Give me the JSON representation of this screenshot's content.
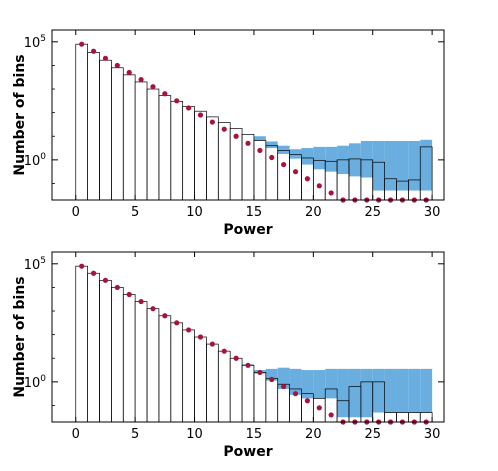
{
  "chart_data": [
    {
      "type": "bar",
      "xlabel": "Power",
      "ylabel": "Number of bins",
      "xlim": [
        -2,
        31
      ],
      "ylim_log10": [
        -1.7,
        5.5
      ],
      "y_scale": "log",
      "xticks": [
        0,
        5,
        10,
        15,
        20,
        25,
        30
      ],
      "xtick_labels": [
        "0",
        "5",
        "10",
        "15",
        "20",
        "25",
        "30"
      ],
      "yticks_log10": [
        5,
        0
      ],
      "ytick_base": "10",
      "ytick_exponents": [
        "5",
        "0"
      ],
      "bin_width": 1,
      "histogram_log10": [
        4.9,
        4.55,
        4.22,
        3.9,
        3.6,
        3.3,
        3.0,
        2.72,
        2.48,
        2.26,
        2.06,
        1.82,
        1.58,
        1.33,
        1.08,
        0.82,
        0.6,
        0.4,
        0.22,
        0.08,
        -0.02,
        -0.06,
        0.0,
        0.04,
        0.0,
        -0.1,
        -0.8,
        -0.9,
        -0.85,
        0.55
      ],
      "band_low_log10": [
        4.9,
        4.55,
        4.22,
        3.9,
        3.6,
        3.3,
        3.0,
        2.72,
        2.48,
        2.26,
        2.06,
        1.82,
        1.58,
        1.33,
        1.08,
        0.82,
        0.5,
        0.25,
        0.05,
        -0.2,
        -0.4,
        -0.5,
        -0.6,
        -0.7,
        -0.75,
        -1.3,
        -1.3,
        -1.3,
        -1.3,
        -1.3
      ],
      "band_high_log10": [
        4.9,
        4.55,
        4.22,
        3.9,
        3.6,
        3.3,
        3.0,
        2.72,
        2.48,
        2.26,
        2.06,
        1.82,
        1.58,
        1.33,
        1.08,
        1.0,
        0.78,
        0.6,
        0.45,
        0.5,
        0.55,
        0.55,
        0.6,
        0.7,
        0.8,
        0.8,
        0.8,
        0.8,
        0.8,
        0.85
      ],
      "points_x": [
        0.5,
        1.5,
        2.5,
        3.5,
        4.5,
        5.5,
        6.5,
        7.5,
        8.5,
        9.5,
        10.5,
        11.5,
        12.5,
        13.5,
        14.5,
        15.5,
        16.5,
        17.5,
        18.5,
        19.5,
        20.5,
        21.5,
        22.5,
        23.5,
        24.5,
        25.5,
        26.5,
        27.5,
        28.5,
        29.5
      ],
      "points_log10": [
        4.9,
        4.6,
        4.3,
        4.0,
        3.7,
        3.4,
        3.1,
        2.8,
        2.5,
        2.2,
        1.9,
        1.6,
        1.3,
        1.0,
        0.7,
        0.4,
        0.1,
        -0.2,
        -0.5,
        -0.8,
        -1.1,
        -1.4,
        -1.7,
        -2.0,
        -2.3,
        -2.6,
        -2.9,
        -3.2,
        -3.5,
        -3.8
      ],
      "colors": {
        "band": "#6aaee0",
        "points": "#a8123b",
        "bars": "#000000"
      }
    },
    {
      "type": "bar",
      "xlabel": "Power",
      "ylabel": "Number of bins",
      "xlim": [
        -2,
        31
      ],
      "ylim_log10": [
        -1.7,
        5.5
      ],
      "y_scale": "log",
      "xticks": [
        0,
        5,
        10,
        15,
        20,
        25,
        30
      ],
      "xtick_labels": [
        "0",
        "5",
        "10",
        "15",
        "20",
        "25",
        "30"
      ],
      "yticks_log10": [
        5,
        0
      ],
      "ytick_base": "10",
      "ytick_exponents": [
        "5",
        "0"
      ],
      "bin_width": 1,
      "histogram_log10": [
        4.9,
        4.6,
        4.3,
        4.0,
        3.7,
        3.4,
        3.1,
        2.8,
        2.5,
        2.2,
        1.9,
        1.6,
        1.3,
        1.0,
        0.7,
        0.4,
        0.15,
        -0.1,
        -0.3,
        -0.5,
        -0.7,
        -0.3,
        -0.8,
        -0.2,
        0.0,
        0.0,
        -1.3,
        -1.3,
        -1.3,
        -1.3
      ],
      "band_low_log10": [
        4.9,
        4.6,
        4.3,
        4.0,
        3.7,
        3.4,
        3.1,
        2.8,
        2.5,
        2.2,
        1.9,
        1.6,
        1.3,
        1.0,
        0.7,
        0.35,
        0.05,
        -0.3,
        -0.55,
        -0.7,
        -0.7,
        -0.7,
        -1.5,
        -1.5,
        -1.5,
        -1.3,
        -1.3,
        -1.3,
        -1.3,
        -1.3
      ],
      "band_high_log10": [
        4.9,
        4.6,
        4.3,
        4.0,
        3.7,
        3.4,
        3.1,
        2.8,
        2.5,
        2.2,
        1.9,
        1.6,
        1.3,
        1.0,
        0.75,
        0.5,
        0.55,
        0.6,
        0.55,
        0.5,
        0.5,
        0.55,
        0.55,
        0.55,
        0.55,
        0.55,
        0.55,
        0.55,
        0.55,
        0.55
      ],
      "points_x": [
        0.5,
        1.5,
        2.5,
        3.5,
        4.5,
        5.5,
        6.5,
        7.5,
        8.5,
        9.5,
        10.5,
        11.5,
        12.5,
        13.5,
        14.5,
        15.5,
        16.5,
        17.5,
        18.5,
        19.5,
        20.5,
        21.5,
        22.5,
        23.5,
        24.5,
        25.5,
        26.5,
        27.5,
        28.5,
        29.5
      ],
      "points_log10": [
        4.9,
        4.6,
        4.3,
        4.0,
        3.7,
        3.4,
        3.1,
        2.8,
        2.5,
        2.2,
        1.9,
        1.6,
        1.3,
        1.0,
        0.7,
        0.4,
        0.1,
        -0.2,
        -0.5,
        -0.8,
        -1.1,
        -1.4,
        -1.7,
        -2.0,
        -2.3,
        -2.6,
        -2.9,
        -3.2,
        -3.5,
        -3.8
      ],
      "colors": {
        "band": "#6aaee0",
        "points": "#a8123b",
        "bars": "#000000"
      }
    }
  ]
}
